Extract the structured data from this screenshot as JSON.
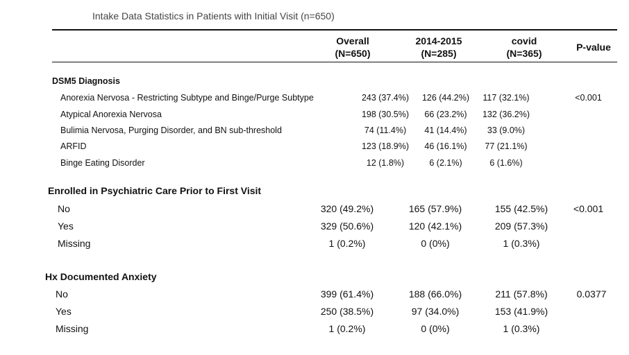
{
  "caption": "Intake Data Statistics in Patients with Initial Visit (n=650)",
  "columns": [
    {
      "label": "Overall",
      "n": "(N=650)"
    },
    {
      "label": "2014-2015",
      "n": "(N=285)"
    },
    {
      "label": "covid",
      "n": "(N=365)"
    },
    {
      "label": "P-value",
      "n": ""
    }
  ],
  "sections": [
    {
      "title": "DSM5 Diagnosis",
      "rows": [
        {
          "label": "Anorexia Nervosa - Restricting Subtype and Binge/Purge Subtype",
          "overall": "243 (37.4%)",
          "y2014": "126 (44.2%)",
          "covid": "117 (32.1%)",
          "p": "<0.001"
        },
        {
          "label": "Atypical Anorexia Nervosa",
          "overall": "198 (30.5%)",
          "y2014": "66 (23.2%)",
          "covid": "132 (36.2%)",
          "p": ""
        },
        {
          "label": "Bulimia Nervosa, Purging Disorder, and BN sub-threshold",
          "overall": "74 (11.4%)",
          "y2014": "41 (14.4%)",
          "covid": "33 (9.0%)",
          "p": ""
        },
        {
          "label": "ARFID",
          "overall": "123 (18.9%)",
          "y2014": "46 (16.1%)",
          "covid": "77 (21.1%)",
          "p": ""
        },
        {
          "label": "Binge Eating Disorder",
          "overall": "12 (1.8%)",
          "y2014": "6 (2.1%)",
          "covid": "6 (1.6%)",
          "p": ""
        }
      ]
    },
    {
      "title": "Enrolled in Psychiatric Care Prior to First Visit",
      "rows": [
        {
          "label": "No",
          "overall": "320 (49.2%)",
          "y2014": "165 (57.9%)",
          "covid": "155 (42.5%)",
          "p": "<0.001"
        },
        {
          "label": "Yes",
          "overall": "329 (50.6%)",
          "y2014": "120 (42.1%)",
          "covid": "209 (57.3%)",
          "p": ""
        },
        {
          "label": "Missing",
          "overall": "1 (0.2%)",
          "y2014": "0 (0%)",
          "covid": "1 (0.3%)",
          "p": ""
        }
      ]
    },
    {
      "title": "Hx Documented Anxiety",
      "rows": [
        {
          "label": "No",
          "overall": "399 (61.4%)",
          "y2014": "188 (66.0%)",
          "covid": "211 (57.8%)",
          "p": "0.0377"
        },
        {
          "label": "Yes",
          "overall": "250 (38.5%)",
          "y2014": "97 (34.0%)",
          "covid": "153 (41.9%)",
          "p": ""
        },
        {
          "label": "Missing",
          "overall": "1 (0.2%)",
          "y2014": "0 (0%)",
          "covid": "1 (0.3%)",
          "p": ""
        }
      ]
    }
  ]
}
